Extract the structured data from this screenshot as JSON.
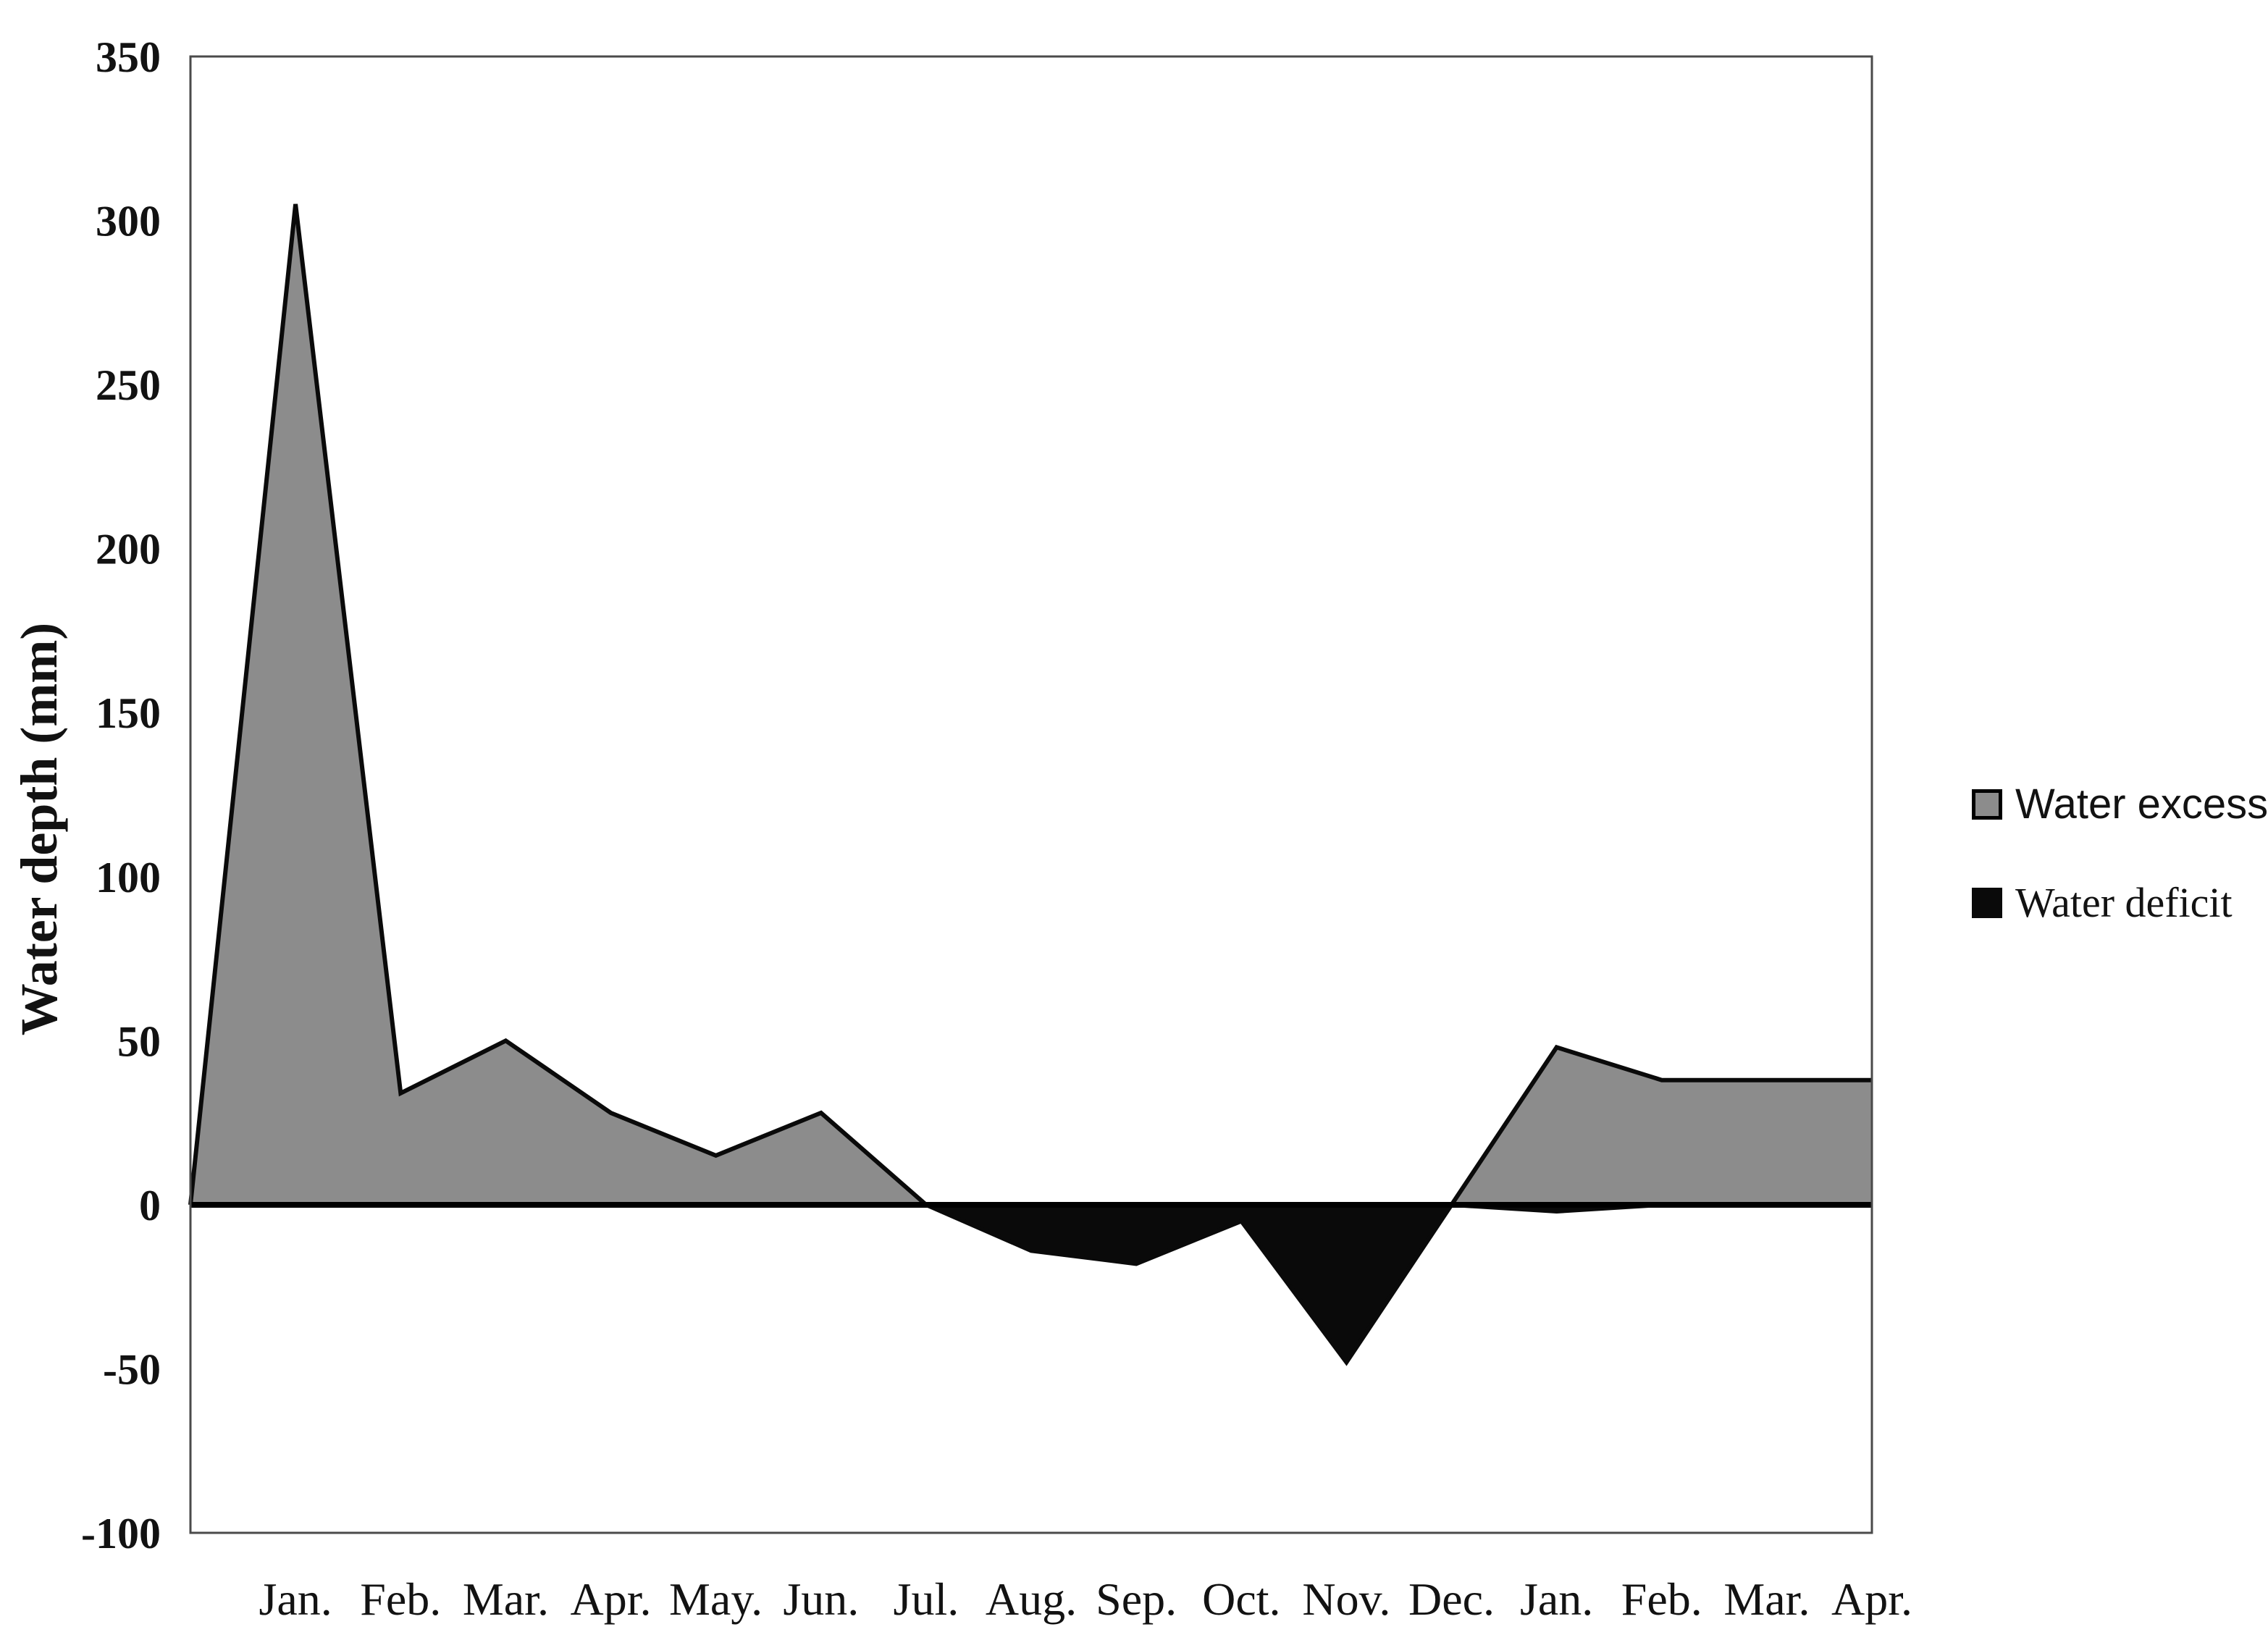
{
  "chart_data": {
    "type": "area",
    "title": "",
    "xlabel": "",
    "ylabel": "Water depth (mm)",
    "ylim": [
      -100,
      350
    ],
    "ytick_step": 50,
    "yticks": [
      350,
      300,
      250,
      200,
      150,
      100,
      50,
      0,
      -50,
      -100
    ],
    "grid": false,
    "legend_position": "right",
    "categories": [
      "",
      "Jan.",
      "Feb.",
      "Mar.",
      "Apr.",
      "May.",
      "Jun.",
      "Jul.",
      "Aug.",
      "Sep.",
      "Oct.",
      "Nov.",
      "Dec.",
      "Jan.",
      "Feb.",
      "Mar.",
      "Apr."
    ],
    "series": [
      {
        "name": "Water excess",
        "fill_color": "#8c8c8c",
        "line_color": "#0a0a0a",
        "values": [
          0,
          305,
          34,
          50,
          28,
          15,
          28,
          0,
          0,
          0,
          0,
          0,
          0,
          48,
          38,
          38,
          38
        ]
      },
      {
        "name": "Water deficit",
        "fill_color": "#0a0a0a",
        "line_color": "#0a0a0a",
        "values": [
          0,
          0,
          0,
          0,
          0,
          0,
          0,
          0,
          -14,
          -18,
          -5,
          -48,
          0,
          -2,
          0,
          0,
          0
        ]
      }
    ],
    "colors": {
      "background": "#ffffff",
      "frame": "#4a4a4a",
      "zero_axis": "#000000",
      "text": "#121212"
    }
  }
}
